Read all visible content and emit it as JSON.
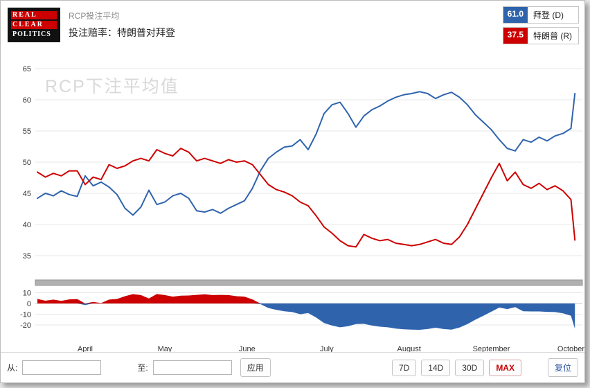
{
  "header": {
    "logo_lines": [
      "REAL",
      "CLEAR",
      "POLITICS"
    ],
    "kicker": "RCP投注平均",
    "title": "投注赔率：特朗普对拜登"
  },
  "legend": [
    {
      "value": "61.0",
      "label": "拜登 (D)",
      "color": "#2f64ad"
    },
    {
      "value": "37.5",
      "label": "特朗普 (R)",
      "color": "#cc0000"
    }
  ],
  "chart_data": {
    "type": "line",
    "title": "RCP投注平均 — 投注赔率：特朗普对拜登",
    "watermark": "RCP下注平均值",
    "x_unit": "days_since_april_1_2020",
    "x": [
      -18,
      -15,
      -12,
      -9,
      -6,
      -3,
      0,
      3,
      6,
      9,
      12,
      15,
      18,
      21,
      24,
      27,
      30,
      33,
      36,
      39,
      42,
      45,
      48,
      51,
      54,
      57,
      60,
      63,
      66,
      69,
      72,
      75,
      78,
      81,
      84,
      87,
      90,
      93,
      96,
      99,
      102,
      105,
      108,
      111,
      114,
      117,
      120,
      123,
      126,
      129,
      132,
      135,
      138,
      141,
      144,
      147,
      150,
      153,
      156,
      159,
      162,
      165,
      168,
      171,
      174,
      177,
      180,
      183,
      184.5
    ],
    "series": [
      {
        "name": "拜登 (D)",
        "color": "#2f64ad",
        "current": 61.0,
        "values": [
          44.2,
          45.0,
          44.6,
          45.4,
          44.8,
          44.5,
          47.8,
          46.2,
          46.8,
          46.0,
          44.8,
          42.6,
          41.5,
          42.8,
          45.5,
          43.2,
          43.6,
          44.6,
          45.0,
          44.2,
          42.2,
          42.0,
          42.4,
          41.8,
          42.6,
          43.2,
          43.8,
          45.8,
          48.6,
          50.6,
          51.6,
          52.4,
          52.6,
          53.6,
          52.0,
          54.5,
          57.8,
          59.2,
          59.6,
          57.8,
          55.6,
          57.4,
          58.4,
          59.0,
          59.8,
          60.4,
          60.8,
          61.0,
          61.3,
          61.0,
          60.2,
          60.8,
          61.2,
          60.4,
          59.2,
          57.6,
          56.4,
          55.2,
          53.6,
          52.2,
          51.8,
          53.6,
          53.2,
          54.0,
          53.4,
          54.2,
          54.6,
          55.4,
          61.0
        ]
      },
      {
        "name": "特朗普 (R)",
        "color": "#cc0000",
        "current": 37.5,
        "values": [
          48.4,
          47.6,
          48.2,
          47.8,
          48.6,
          48.6,
          46.4,
          47.6,
          47.2,
          49.6,
          49.0,
          49.4,
          50.2,
          50.6,
          50.2,
          52.0,
          51.4,
          51.0,
          52.2,
          51.6,
          50.2,
          50.6,
          50.2,
          49.8,
          50.4,
          50.0,
          50.2,
          49.6,
          48.0,
          46.4,
          45.6,
          45.2,
          44.6,
          43.6,
          43.0,
          41.4,
          39.6,
          38.6,
          37.4,
          36.6,
          36.4,
          38.4,
          37.8,
          37.4,
          37.6,
          37.0,
          36.8,
          36.6,
          36.8,
          37.2,
          37.6,
          37.0,
          36.8,
          38.0,
          40.0,
          42.5,
          45.0,
          47.5,
          49.8,
          47.0,
          48.4,
          46.4,
          45.8,
          46.6,
          45.6,
          46.2,
          45.4,
          44.0,
          37.5
        ]
      }
    ],
    "x_ticks": [
      {
        "day": 0,
        "label": "April"
      },
      {
        "day": 30,
        "label": "May"
      },
      {
        "day": 61,
        "label": "June"
      },
      {
        "day": 91,
        "label": "July"
      },
      {
        "day": 122,
        "label": "August"
      },
      {
        "day": 153,
        "label": "September"
      },
      {
        "day": 183,
        "label": "October"
      }
    ],
    "main_yticks": [
      65,
      60,
      55,
      50,
      45,
      40,
      35
    ],
    "main_ylim": [
      33,
      66
    ],
    "spread_panel": {
      "yticks": [
        10,
        0,
        -10,
        -20
      ],
      "formula": "特朗普 - 拜登",
      "positive_color": "#cc0000",
      "negative_color": "#2f64ad"
    },
    "grid": "horizontal",
    "legend_position": "top-right"
  },
  "footer": {
    "from_label": "从:",
    "from_value": "",
    "to_label": "至:",
    "to_value": "",
    "apply_label": "应用",
    "range_buttons": [
      {
        "label": "7D",
        "active": false
      },
      {
        "label": "14D",
        "active": false
      },
      {
        "label": "30D",
        "active": false
      },
      {
        "label": "MAX",
        "active": true
      },
      {
        "label": "复位",
        "active": false
      }
    ]
  }
}
